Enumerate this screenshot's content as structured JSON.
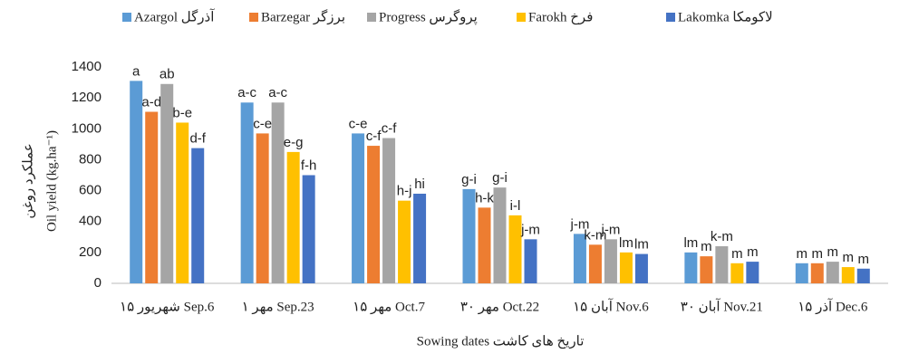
{
  "chart_data": {
    "type": "bar",
    "xlabel": "Sowing dates تاریخ های کاشت",
    "ylabel": "Oil yield (kg.ha⁻¹)",
    "ylabel2": "عملکرد روغن",
    "categories": [
      "۱۵ شهریور Sep.6",
      "۱ مهر Sep.23",
      "۱۵ مهر Oct.7",
      "۳۰ مهر Oct.22",
      "۱۵ آبان Nov.6",
      "۳۰ آبان Nov.21",
      "۱۵ آذر Dec.6"
    ],
    "series": [
      {
        "name": "Azargol آذرگل",
        "color": "#5b9bd5",
        "values": [
          1310,
          1170,
          970,
          610,
          320,
          200,
          130
        ],
        "letters": [
          "a",
          "a-c",
          "c-e",
          "g-i",
          "j-m",
          "lm",
          "m"
        ]
      },
      {
        "name": "Barzegar برزگر",
        "color": "#ed7d31",
        "values": [
          1110,
          970,
          890,
          490,
          250,
          175,
          130
        ],
        "letters": [
          "a-d",
          "c-e",
          "c-f",
          "h-k",
          "k-m",
          "m",
          "m"
        ]
      },
      {
        "name": "Progress پروگرس",
        "color": "#a5a5a5",
        "values": [
          1290,
          1170,
          940,
          620,
          285,
          240,
          140
        ],
        "letters": [
          "ab",
          "a-c",
          "c-f",
          "g-i",
          "j-m",
          "k-m",
          "m"
        ]
      },
      {
        "name": "Farokh فرخ",
        "color": "#ffc000",
        "values": [
          1040,
          850,
          535,
          440,
          200,
          130,
          105
        ],
        "letters": [
          "b-e",
          "e-g",
          "h-j",
          "i-l",
          "lm",
          "m",
          "m"
        ]
      },
      {
        "name": "Lakomka لاکومکا",
        "color": "#4472c4",
        "values": [
          875,
          700,
          580,
          285,
          190,
          140,
          95
        ],
        "letters": [
          "d-f",
          "f-h",
          "hi",
          "j-m",
          "lm",
          "m",
          "m"
        ]
      }
    ],
    "ylim": [
      0,
      1400
    ],
    "yticks": [
      0,
      200,
      400,
      600,
      800,
      1000,
      1200,
      1400
    ],
    "grid": false,
    "legend": "top"
  }
}
